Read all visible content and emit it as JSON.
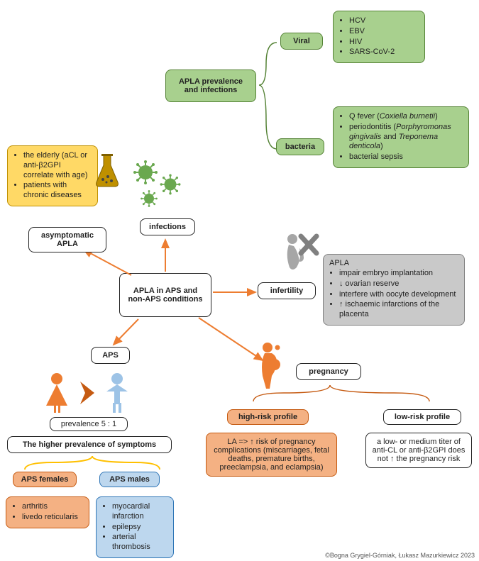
{
  "colors": {
    "green_fill": "#a8d08e",
    "green_border": "#70ad47",
    "green_dark": "#548235",
    "yellow_fill": "#ffd966",
    "yellow_border": "#bf9000",
    "gray_fill": "#c9c9c9",
    "gray_border": "#808080",
    "salmon_fill": "#f4b183",
    "salmon_border": "#c55a11",
    "blue_fill": "#bdd7ee",
    "blue_border": "#2e75b6",
    "orange_arrow": "#ed7d31",
    "yellow_line": "#ffc000",
    "virus_green": "#6aa84f"
  },
  "center": {
    "label": "APLA in APS and non-APS conditions"
  },
  "infections_node": {
    "label": "infections"
  },
  "infections_header": {
    "label": "APLA prevalence and infections"
  },
  "viral": {
    "label": "Viral",
    "items": [
      "HCV",
      "EBV",
      "HIV",
      "SARS-CoV-2"
    ]
  },
  "bacteria": {
    "label": "bacteria",
    "items_raw": [
      "Q fever (<span class='em'>Coxiella burnetii</span>)",
      "periodontitis (<span class='em'>Porphyromonas gingivalis</span> and <span class='em'>Treponema denticola</span>)",
      "bacterial sepsis"
    ]
  },
  "asymptomatic": {
    "label": "asymptomatic APLA",
    "items": [
      "the elderly (aCL or anti-β2GPI correlate with age)",
      "patients with chronic diseases"
    ]
  },
  "infertility": {
    "label": "infertility",
    "apla_label": "APLA",
    "items": [
      "impair embryo implantation",
      "↓ ovarian reserve",
      "interfere with oocyte development",
      "↑ ischaemic infarctions of the placenta"
    ]
  },
  "aps": {
    "label": "APS",
    "prevalence": "prevalence 5 : 1",
    "higher_prev": "The higher prevalence of symptoms",
    "females_label": "APS females",
    "males_label": "APS males",
    "females_items": [
      "arthritis",
      "livedo reticularis"
    ],
    "males_items": [
      "myocardial infarction",
      "epilepsy",
      "arterial thrombosis"
    ]
  },
  "pregnancy": {
    "label": "pregnancy",
    "high_label": "high-risk profile",
    "low_label": "low-risk profile",
    "high_text": "LA => ↑ risk of pregnancy complications (miscarriages, fetal deaths, premature births, preeclampsia, and eclampsia)",
    "low_text": "a low- or medium titer of anti-CL or anti-β2GPI does not ↑ the pregnancy risk"
  },
  "copyright": "©Bogna Grygiel-Górniak, Łukasz Mazurkiewicz 2023"
}
